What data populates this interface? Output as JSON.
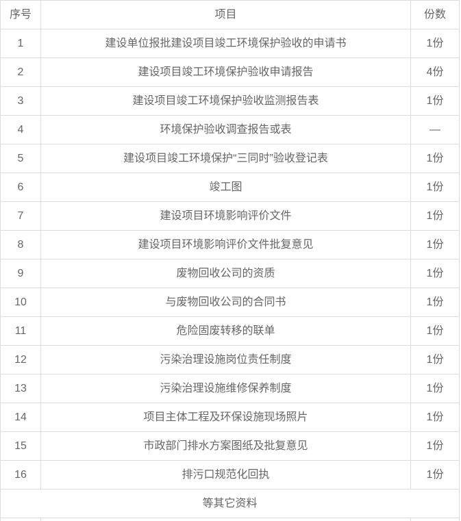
{
  "colors": {
    "border": "#dcdcdc",
    "text": "#666666",
    "background": "#ffffff"
  },
  "table": {
    "columns": [
      {
        "key": "index",
        "label": "序号"
      },
      {
        "key": "item",
        "label": "项目"
      },
      {
        "key": "copies",
        "label": "份数"
      }
    ],
    "rows": [
      {
        "index": "1",
        "item": "建设单位报批建设项目竣工环境保护验收的申请书",
        "copies": "1份"
      },
      {
        "index": "2",
        "item": "建设项目竣工环境保护验收申请报告",
        "copies": "4份"
      },
      {
        "index": "3",
        "item": "建设项目竣工环境保护验收监测报告表",
        "copies": "1份"
      },
      {
        "index": "4",
        "item": "环境保护验收调查报告或表",
        "copies": "—"
      },
      {
        "index": "5",
        "item": "建设项目竣工环境保护“三同时”验收登记表",
        "copies": "1份"
      },
      {
        "index": "6",
        "item": "竣工图",
        "copies": "1份"
      },
      {
        "index": "7",
        "item": "建设项目环境影响评价文件",
        "copies": "1份"
      },
      {
        "index": "8",
        "item": "建设项目环境影响评价文件批复意见",
        "copies": "1份"
      },
      {
        "index": "9",
        "item": "废物回收公司的资质",
        "copies": "1份"
      },
      {
        "index": "10",
        "item": "与废物回收公司的合同书",
        "copies": "1份"
      },
      {
        "index": "11",
        "item": "危险固废转移的联单",
        "copies": "1份"
      },
      {
        "index": "12",
        "item": "污染治理设施岗位责任制度",
        "copies": "1份"
      },
      {
        "index": "13",
        "item": "污染治理设施维修保养制度",
        "copies": "1份"
      },
      {
        "index": "14",
        "item": "项目主体工程及环保设施现场照片",
        "copies": "1份"
      },
      {
        "index": "15",
        "item": "市政部门排水方案图纸及批复意见",
        "copies": "1份"
      },
      {
        "index": "16",
        "item": "排污口规范化回执",
        "copies": "1份"
      }
    ],
    "footer_label": "等其它资料"
  }
}
